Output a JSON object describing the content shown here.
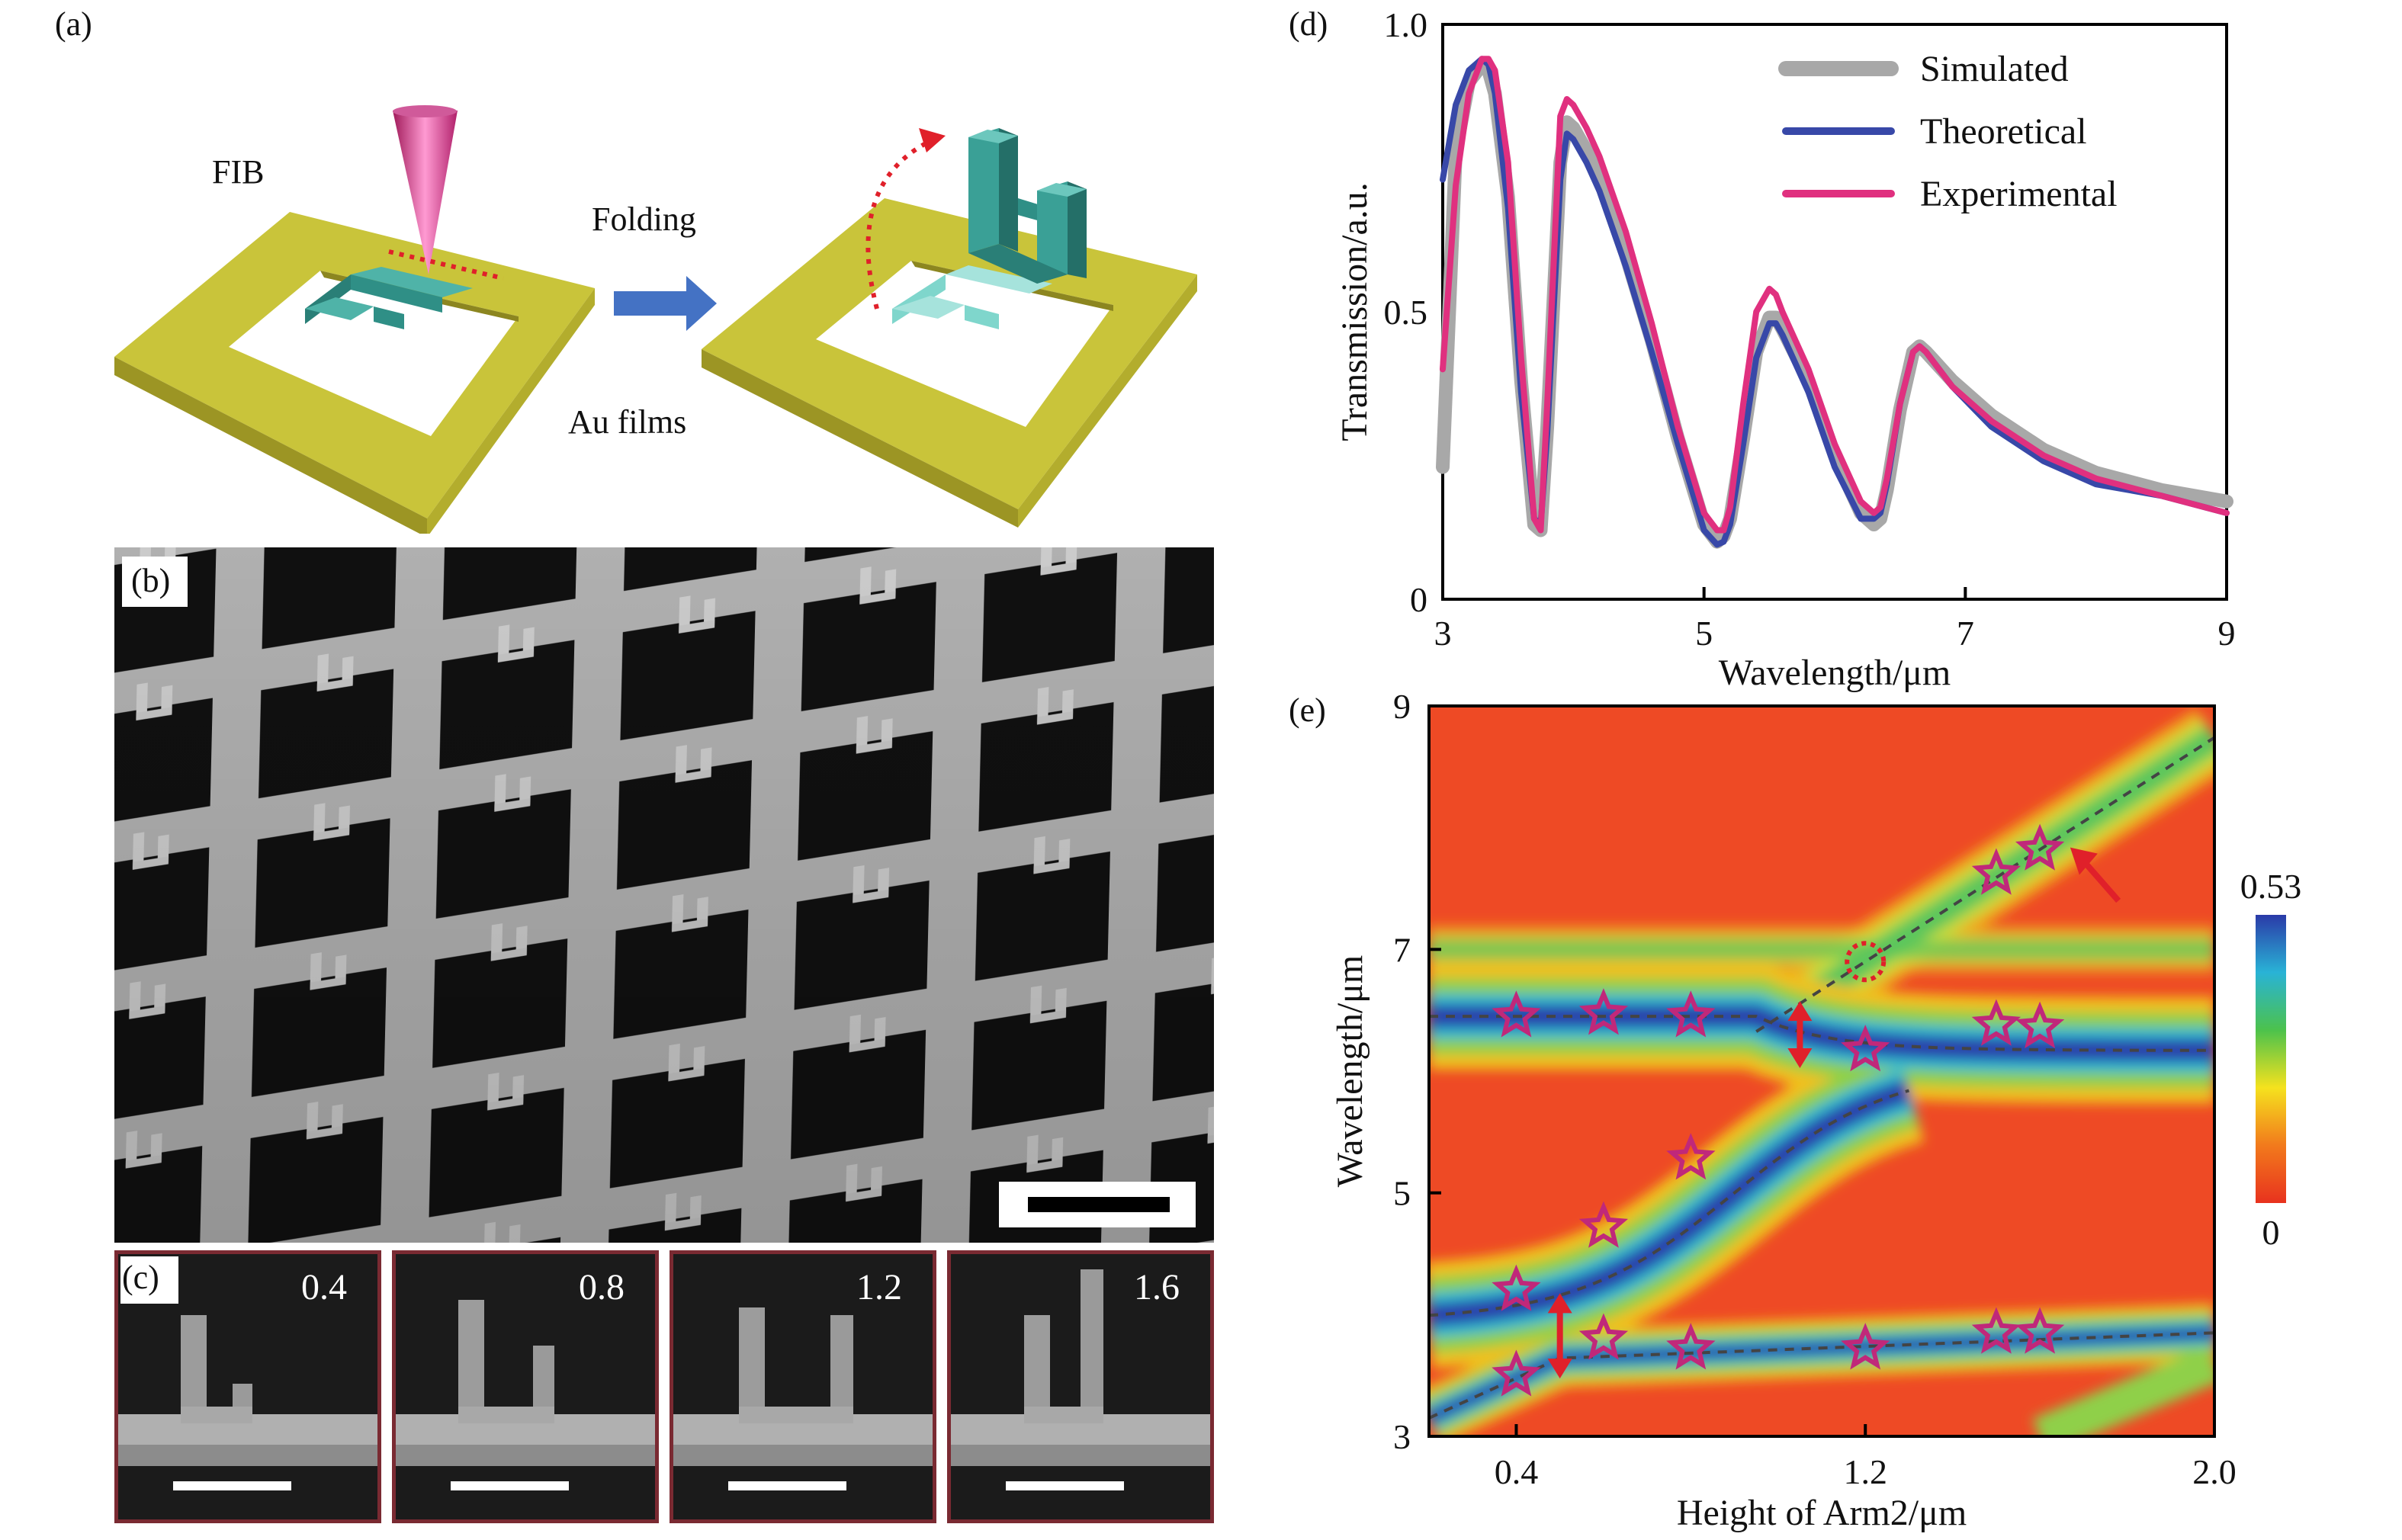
{
  "panel_a": {
    "label": "(a)",
    "fib_label": "FIB",
    "folding_label": "Folding",
    "au_label": "Au films"
  },
  "panel_b": {
    "label": "(b)"
  },
  "panel_c": {
    "label": "(c)",
    "values": [
      "0.4",
      "0.8",
      "1.2",
      "1.6"
    ]
  },
  "colors": {
    "gold": "#c9c43a",
    "teal": "#2f8f86",
    "teal_light": "#7fd6cc",
    "simulated": "#a8a8a8",
    "theoretical": "#3848a8",
    "experimental": "#e0307f",
    "arrow_red": "#e0202a"
  },
  "chart_data": [
    {
      "panel": "(d)",
      "type": "line",
      "xlabel": "Wavelength/μm",
      "ylabel": "Transmission/a.u.",
      "xlim": [
        3,
        9
      ],
      "ylim": [
        0,
        1.0
      ],
      "xticks": [
        "3",
        "5",
        "7",
        "9"
      ],
      "yticks": [
        "0",
        "0.5",
        "1.0"
      ],
      "legend_position": "top-right",
      "series": [
        {
          "name": "Simulated",
          "x": [
            3.0,
            3.1,
            3.2,
            3.3,
            3.35,
            3.4,
            3.5,
            3.6,
            3.7,
            3.75,
            3.8,
            3.9,
            3.95,
            4.0,
            4.1,
            4.2,
            4.4,
            4.6,
            4.8,
            5.0,
            5.1,
            5.15,
            5.2,
            5.3,
            5.4,
            5.5,
            5.55,
            5.6,
            5.8,
            6.0,
            6.2,
            6.3,
            6.35,
            6.4,
            6.5,
            6.6,
            6.65,
            6.7,
            6.9,
            7.2,
            7.6,
            8.0,
            8.5,
            9.0
          ],
          "y": [
            0.23,
            0.78,
            0.9,
            0.93,
            0.92,
            0.88,
            0.7,
            0.38,
            0.13,
            0.12,
            0.3,
            0.76,
            0.83,
            0.82,
            0.78,
            0.73,
            0.6,
            0.45,
            0.28,
            0.13,
            0.1,
            0.11,
            0.14,
            0.28,
            0.43,
            0.49,
            0.49,
            0.47,
            0.38,
            0.25,
            0.15,
            0.13,
            0.14,
            0.19,
            0.33,
            0.43,
            0.44,
            0.43,
            0.38,
            0.32,
            0.26,
            0.22,
            0.19,
            0.17
          ]
        },
        {
          "name": "Theoretical",
          "x": [
            3.0,
            3.1,
            3.2,
            3.3,
            3.35,
            3.4,
            3.5,
            3.6,
            3.7,
            3.75,
            3.8,
            3.9,
            3.95,
            4.0,
            4.1,
            4.2,
            4.4,
            4.6,
            4.8,
            5.0,
            5.1,
            5.15,
            5.2,
            5.3,
            5.4,
            5.5,
            5.55,
            5.6,
            5.8,
            6.0,
            6.2,
            6.3,
            6.35,
            6.4,
            6.5,
            6.6,
            6.65,
            6.7,
            6.9,
            7.2,
            7.6,
            8.0,
            8.5,
            9.0
          ],
          "y": [
            0.73,
            0.86,
            0.92,
            0.94,
            0.93,
            0.88,
            0.68,
            0.36,
            0.14,
            0.13,
            0.29,
            0.73,
            0.81,
            0.8,
            0.76,
            0.71,
            0.58,
            0.43,
            0.27,
            0.12,
            0.095,
            0.1,
            0.13,
            0.27,
            0.42,
            0.48,
            0.48,
            0.46,
            0.36,
            0.23,
            0.14,
            0.14,
            0.15,
            0.2,
            0.34,
            0.43,
            0.44,
            0.43,
            0.37,
            0.3,
            0.24,
            0.2,
            0.18,
            0.15
          ]
        },
        {
          "name": "Experimental",
          "x": [
            3.0,
            3.1,
            3.2,
            3.3,
            3.35,
            3.4,
            3.5,
            3.6,
            3.7,
            3.75,
            3.8,
            3.9,
            3.95,
            4.0,
            4.1,
            4.2,
            4.4,
            4.6,
            4.8,
            5.0,
            5.1,
            5.15,
            5.2,
            5.3,
            5.4,
            5.5,
            5.55,
            5.6,
            5.8,
            6.0,
            6.2,
            6.3,
            6.35,
            6.4,
            6.5,
            6.6,
            6.65,
            6.7,
            6.9,
            7.2,
            7.6,
            8.0,
            8.5,
            9.0
          ],
          "y": [
            0.4,
            0.72,
            0.88,
            0.94,
            0.94,
            0.92,
            0.76,
            0.42,
            0.14,
            0.12,
            0.34,
            0.84,
            0.87,
            0.86,
            0.82,
            0.77,
            0.64,
            0.48,
            0.3,
            0.15,
            0.12,
            0.12,
            0.16,
            0.34,
            0.5,
            0.54,
            0.53,
            0.5,
            0.4,
            0.27,
            0.17,
            0.15,
            0.16,
            0.21,
            0.34,
            0.43,
            0.44,
            0.43,
            0.37,
            0.31,
            0.25,
            0.21,
            0.18,
            0.15
          ]
        }
      ]
    },
    {
      "panel": "(e)",
      "type": "heatmap",
      "xlabel": "Height of Arm2/μm",
      "ylabel": "Wavelength/μm",
      "xlim": [
        0.2,
        2.0
      ],
      "ylim": [
        3,
        9
      ],
      "xticks": [
        "0.4",
        "1.2",
        "2.0"
      ],
      "yticks": [
        "3",
        "5",
        "7",
        "9"
      ],
      "colorbar": {
        "min_label": "0",
        "max_label": "0.53",
        "min": 0,
        "max": 0.53
      },
      "star_markers": [
        {
          "x": 0.4,
          "y": 6.45
        },
        {
          "x": 0.6,
          "y": 6.47
        },
        {
          "x": 0.8,
          "y": 6.45
        },
        {
          "x": 1.5,
          "y": 6.38
        },
        {
          "x": 1.6,
          "y": 6.36
        },
        {
          "x": 1.2,
          "y": 6.17
        },
        {
          "x": 0.8,
          "y": 5.28
        },
        {
          "x": 0.6,
          "y": 4.72
        },
        {
          "x": 0.4,
          "y": 4.2
        },
        {
          "x": 0.4,
          "y": 3.5
        },
        {
          "x": 0.6,
          "y": 3.8
        },
        {
          "x": 0.8,
          "y": 3.72
        },
        {
          "x": 1.2,
          "y": 3.72
        },
        {
          "x": 1.5,
          "y": 3.85
        },
        {
          "x": 1.6,
          "y": 3.85
        },
        {
          "x": 1.5,
          "y": 7.62
        },
        {
          "x": 1.6,
          "y": 7.82
        }
      ],
      "crossing_point": {
        "x": 1.2,
        "y": 6.9
      }
    }
  ]
}
